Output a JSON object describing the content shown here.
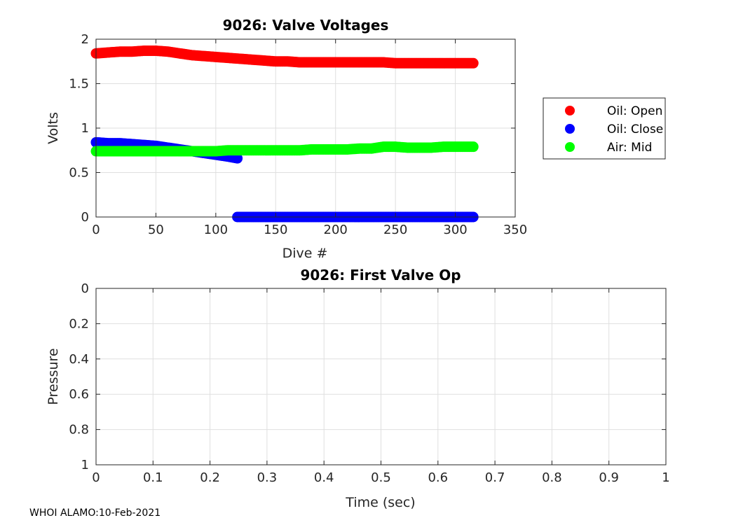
{
  "chart_data": [
    {
      "type": "scatter",
      "title": "9026: Valve Voltages",
      "xlabel": "Dive #",
      "ylabel": "Volts",
      "xlim": [
        0,
        350
      ],
      "ylim": [
        0,
        2
      ],
      "xticks": [
        0,
        50,
        100,
        150,
        200,
        250,
        300,
        350
      ],
      "yticks": [
        0,
        0.5,
        1,
        1.5,
        2
      ],
      "ytick_labels": [
        "0",
        "0.5",
        "1",
        "1.5",
        "2"
      ],
      "grid": true,
      "legend": "outside-right",
      "series": [
        {
          "name": "Oil: Open",
          "color": "#ff0000",
          "points": [
            [
              0,
              1.84
            ],
            [
              10,
              1.85
            ],
            [
              20,
              1.86
            ],
            [
              30,
              1.86
            ],
            [
              40,
              1.87
            ],
            [
              50,
              1.87
            ],
            [
              60,
              1.86
            ],
            [
              70,
              1.84
            ],
            [
              80,
              1.82
            ],
            [
              90,
              1.81
            ],
            [
              100,
              1.8
            ],
            [
              110,
              1.79
            ],
            [
              120,
              1.78
            ],
            [
              130,
              1.77
            ],
            [
              140,
              1.76
            ],
            [
              150,
              1.75
            ],
            [
              160,
              1.75
            ],
            [
              170,
              1.74
            ],
            [
              180,
              1.74
            ],
            [
              190,
              1.74
            ],
            [
              200,
              1.74
            ],
            [
              210,
              1.74
            ],
            [
              220,
              1.74
            ],
            [
              230,
              1.74
            ],
            [
              240,
              1.74
            ],
            [
              250,
              1.73
            ],
            [
              260,
              1.73
            ],
            [
              270,
              1.73
            ],
            [
              280,
              1.73
            ],
            [
              290,
              1.73
            ],
            [
              300,
              1.73
            ],
            [
              315,
              1.73
            ]
          ]
        },
        {
          "name": "Oil: Close",
          "color": "#0000ff",
          "points": [
            [
              0,
              0.84
            ],
            [
              10,
              0.83
            ],
            [
              20,
              0.83
            ],
            [
              30,
              0.82
            ],
            [
              40,
              0.81
            ],
            [
              50,
              0.8
            ],
            [
              60,
              0.78
            ],
            [
              70,
              0.76
            ],
            [
              80,
              0.74
            ],
            [
              90,
              0.72
            ],
            [
              100,
              0.7
            ],
            [
              110,
              0.68
            ],
            [
              118,
              0.66
            ],
            [
              118,
              0
            ],
            [
              130,
              0
            ],
            [
              140,
              0
            ],
            [
              150,
              0
            ],
            [
              160,
              0
            ],
            [
              170,
              0
            ],
            [
              180,
              0
            ],
            [
              190,
              0
            ],
            [
              200,
              0
            ],
            [
              210,
              0
            ],
            [
              220,
              0
            ],
            [
              230,
              0
            ],
            [
              240,
              0
            ],
            [
              250,
              0
            ],
            [
              260,
              0
            ],
            [
              270,
              0
            ],
            [
              280,
              0
            ],
            [
              290,
              0
            ],
            [
              300,
              0
            ],
            [
              315,
              0
            ]
          ]
        },
        {
          "name": "Air: Mid",
          "color": "#00ff00",
          "points": [
            [
              0,
              0.74
            ],
            [
              10,
              0.74
            ],
            [
              20,
              0.74
            ],
            [
              30,
              0.74
            ],
            [
              40,
              0.74
            ],
            [
              50,
              0.74
            ],
            [
              60,
              0.74
            ],
            [
              70,
              0.74
            ],
            [
              80,
              0.74
            ],
            [
              90,
              0.74
            ],
            [
              100,
              0.74
            ],
            [
              110,
              0.75
            ],
            [
              120,
              0.75
            ],
            [
              130,
              0.75
            ],
            [
              140,
              0.75
            ],
            [
              150,
              0.75
            ],
            [
              160,
              0.75
            ],
            [
              170,
              0.75
            ],
            [
              180,
              0.76
            ],
            [
              190,
              0.76
            ],
            [
              200,
              0.76
            ],
            [
              210,
              0.76
            ],
            [
              220,
              0.77
            ],
            [
              230,
              0.77
            ],
            [
              240,
              0.79
            ],
            [
              250,
              0.79
            ],
            [
              260,
              0.78
            ],
            [
              270,
              0.78
            ],
            [
              280,
              0.78
            ],
            [
              290,
              0.79
            ],
            [
              300,
              0.79
            ],
            [
              315,
              0.79
            ]
          ]
        }
      ]
    },
    {
      "type": "scatter",
      "title": "9026: First Valve Op",
      "xlabel": "Time (sec)",
      "ylabel": "Pressure",
      "xlim": [
        0,
        1
      ],
      "ylim": [
        0,
        1
      ],
      "y_reversed": true,
      "xticks": [
        0,
        0.1,
        0.2,
        0.3,
        0.4,
        0.5,
        0.6,
        0.7,
        0.8,
        0.9,
        1
      ],
      "xtick_labels": [
        "0",
        "0.1",
        "0.2",
        "0.3",
        "0.4",
        "0.5",
        "0.6",
        "0.7",
        "0.8",
        "0.9",
        "1"
      ],
      "yticks": [
        0,
        0.2,
        0.4,
        0.6,
        0.8,
        1
      ],
      "ytick_labels": [
        "0",
        "0.2",
        "0.4",
        "0.6",
        "0.8",
        "1"
      ],
      "grid": true,
      "series": []
    }
  ],
  "footer": "WHOI ALAMO:10-Feb-2021"
}
